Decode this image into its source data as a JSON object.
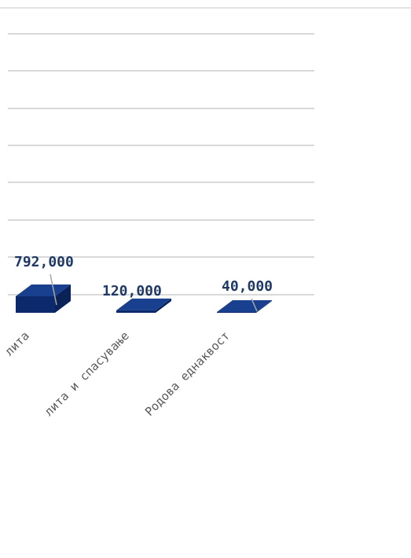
{
  "chart_data": {
    "type": "bar",
    "style": "3d-column",
    "categories": [
      "...лита",
      "...лита и спасување",
      "Родова еднаквост"
    ],
    "values": [
      792000,
      120000,
      40000
    ],
    "data_labels": [
      "792,000",
      "120,000",
      "40,000"
    ],
    "title": "",
    "xlabel": "",
    "ylabel": "",
    "grid": true,
    "bar_color": "#0c2a6b",
    "label_color": "#1f3864",
    "gridline_color": "#d9d9d9"
  }
}
